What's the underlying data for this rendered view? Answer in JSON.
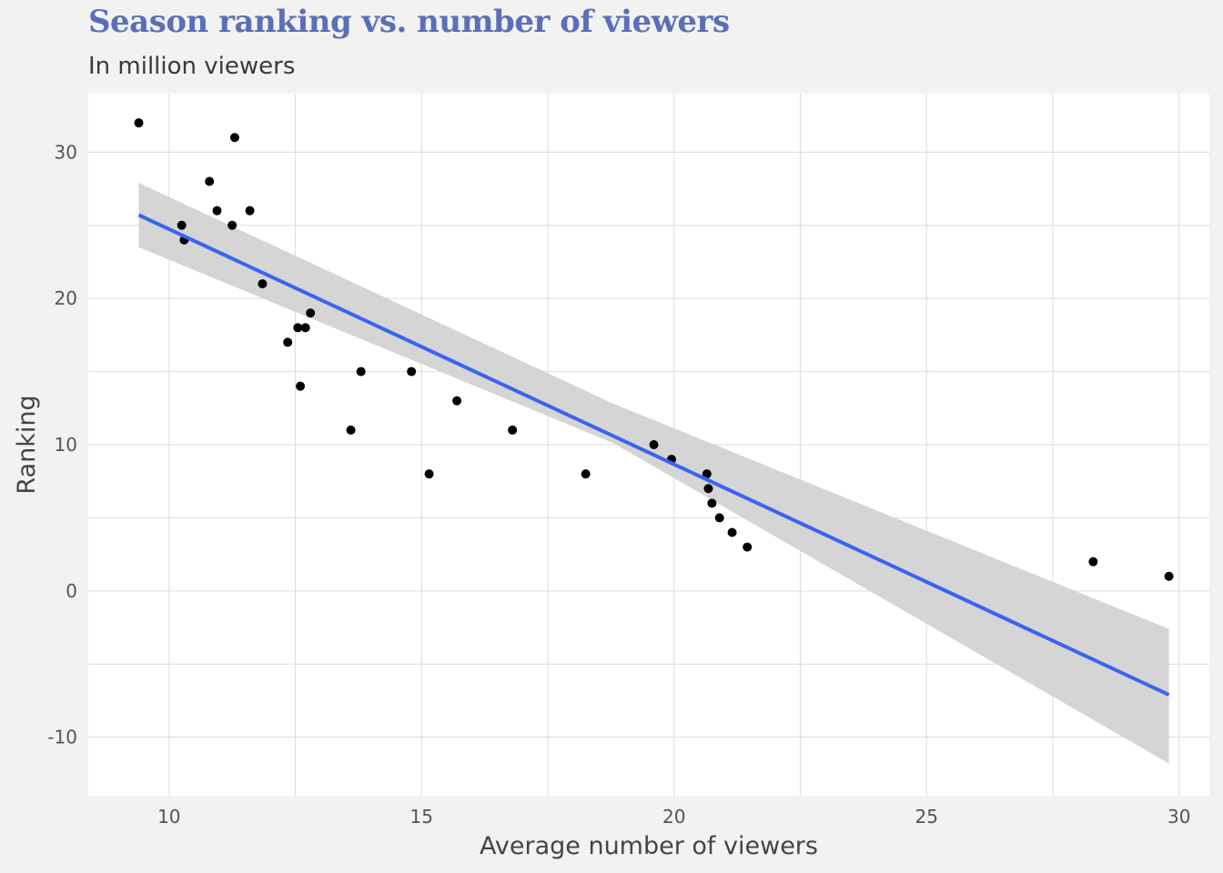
{
  "header": {
    "title": "Season ranking vs. number of viewers",
    "subtitle": "In million viewers"
  },
  "chart_data": {
    "type": "scatter",
    "title": "Season ranking vs. number of viewers",
    "subtitle": "In million viewers",
    "xlabel": "Average number of viewers",
    "ylabel": "Ranking",
    "xlim": [
      8.4,
      30.6
    ],
    "ylim": [
      -14,
      34
    ],
    "xticks": [
      10,
      15,
      20,
      25,
      30
    ],
    "yticks": [
      -10,
      0,
      10,
      20,
      30
    ],
    "grid": true,
    "points": [
      {
        "x": 9.4,
        "y": 32
      },
      {
        "x": 10.25,
        "y": 25
      },
      {
        "x": 10.3,
        "y": 24
      },
      {
        "x": 10.8,
        "y": 28
      },
      {
        "x": 10.95,
        "y": 26
      },
      {
        "x": 11.25,
        "y": 25
      },
      {
        "x": 11.3,
        "y": 31
      },
      {
        "x": 11.6,
        "y": 26
      },
      {
        "x": 11.85,
        "y": 21
      },
      {
        "x": 12.35,
        "y": 17
      },
      {
        "x": 12.55,
        "y": 18
      },
      {
        "x": 12.6,
        "y": 14
      },
      {
        "x": 12.7,
        "y": 18
      },
      {
        "x": 12.8,
        "y": 19
      },
      {
        "x": 13.6,
        "y": 11
      },
      {
        "x": 13.8,
        "y": 15
      },
      {
        "x": 14.8,
        "y": 15
      },
      {
        "x": 15.15,
        "y": 8
      },
      {
        "x": 15.7,
        "y": 13
      },
      {
        "x": 16.8,
        "y": 11
      },
      {
        "x": 18.25,
        "y": 8
      },
      {
        "x": 19.6,
        "y": 10
      },
      {
        "x": 19.95,
        "y": 9
      },
      {
        "x": 20.65,
        "y": 8
      },
      {
        "x": 20.68,
        "y": 7
      },
      {
        "x": 20.75,
        "y": 6
      },
      {
        "x": 20.9,
        "y": 5
      },
      {
        "x": 21.15,
        "y": 4
      },
      {
        "x": 21.45,
        "y": 3
      },
      {
        "x": 28.3,
        "y": 2
      },
      {
        "x": 29.8,
        "y": 1
      }
    ],
    "fit": {
      "method": "linear",
      "x": [
        9.4,
        29.8
      ],
      "y": [
        25.7,
        -7.1
      ],
      "ci_lower": [
        23.5,
        -11.8
      ],
      "ci_upper": [
        27.9,
        -2.6
      ],
      "ci_mid": {
        "x": 18.8,
        "lower": 10.1,
        "upper": 12.8
      }
    },
    "colors": {
      "fit_line": "#3a63f0",
      "ci_band": "#d3d3d3",
      "points": "#000000",
      "panel": "#ffffff",
      "grid": "#dcdcdc",
      "title": "#5b6fb8"
    }
  }
}
